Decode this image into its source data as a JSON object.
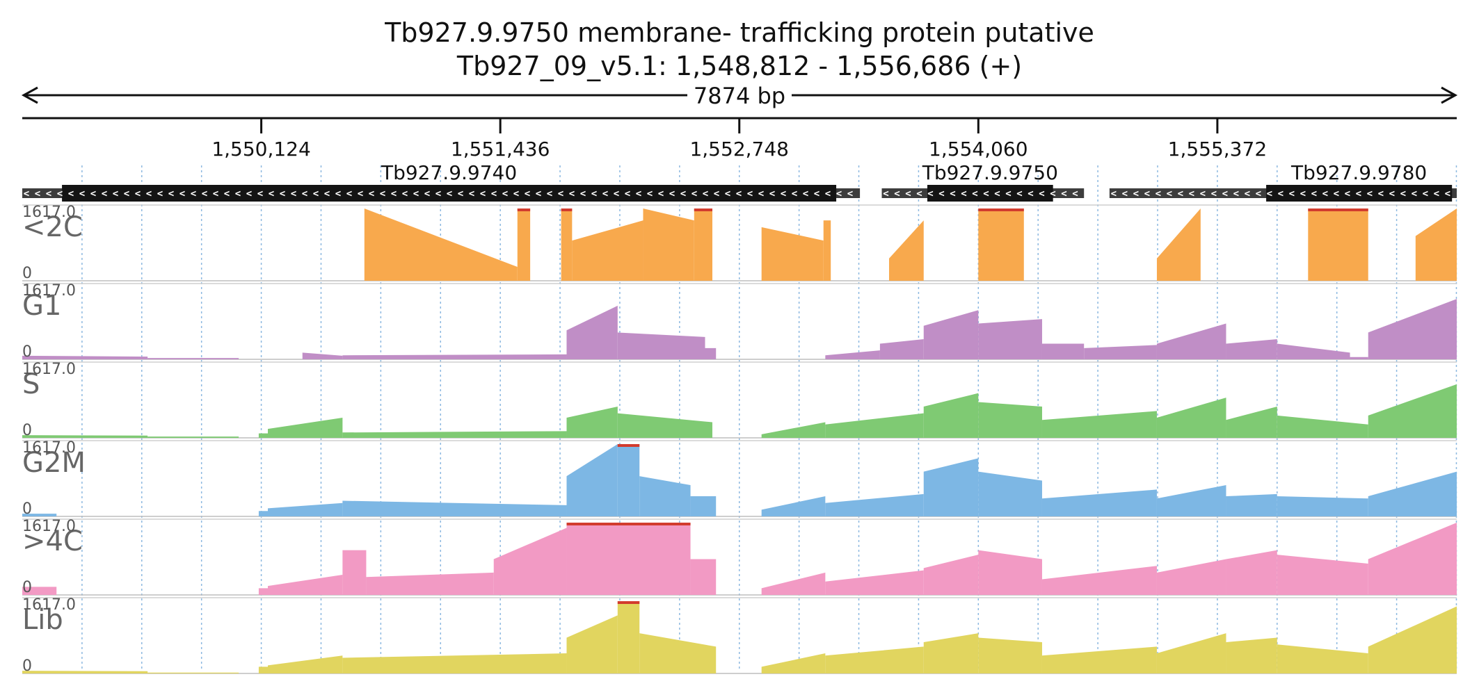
{
  "header": {
    "title": "Tb927.9.9750  membrane- trafficking protein  putative",
    "subtitle": "Tb927_09_v5.1: 1,548,812 - 1,556,686 (+)",
    "span_label": "7874 bp"
  },
  "region": {
    "chrom": "Tb927_09_v5.1",
    "start": 1548812,
    "end": 1556686,
    "strand": "+"
  },
  "chart_data": {
    "type": "area",
    "x_ticks": [
      {
        "pos": 1550124,
        "label": "1,550,124"
      },
      {
        "pos": 1551436,
        "label": "1,551,436"
      },
      {
        "pos": 1552748,
        "label": "1,552,748"
      },
      {
        "pos": 1554060,
        "label": "1,554,060"
      },
      {
        "pos": 1555372,
        "label": "1,555,372"
      }
    ],
    "genes": [
      {
        "name": "Tb927.9.9740",
        "strand": "-",
        "utr_start": 1548812,
        "cds_start": 1549030,
        "cds_end": 1553280,
        "utr_end": 1553410
      },
      {
        "name": "Tb927.9.9750",
        "strand": "-",
        "utr_start": 1553530,
        "cds_start": 1553780,
        "cds_end": 1554470,
        "utr_end": 1554640
      },
      {
        "name": "Tb927.9.9780",
        "strand": "-",
        "utr_start": 1554780,
        "cds_start": 1555640,
        "cds_end": 1556660,
        "utr_end": 1556686
      }
    ],
    "tracks": [
      {
        "name": "<2C",
        "max_label": "1617.0",
        "min_label": "0",
        "ymax": 1617,
        "color": "#f8a94d",
        "segments": [
          [
            1550690,
            1551530,
            1617,
            310
          ],
          [
            1551530,
            1551600,
            1617,
            1617
          ],
          [
            1551770,
            1551830,
            1617,
            1617
          ],
          [
            1551830,
            1552220,
            900,
            1350
          ],
          [
            1552220,
            1552500,
            1617,
            1350
          ],
          [
            1552500,
            1552600,
            1617,
            1617
          ],
          [
            1552870,
            1553210,
            1200,
            900
          ],
          [
            1553210,
            1553250,
            1350,
            1350
          ],
          [
            1553570,
            1553760,
            500,
            1350
          ],
          [
            1554060,
            1554310,
            1617,
            1617
          ],
          [
            1555040,
            1555280,
            500,
            1617
          ],
          [
            1555870,
            1556200,
            1617,
            1617
          ],
          [
            1556460,
            1556686,
            1000,
            1617
          ]
        ]
      },
      {
        "name": "G1",
        "max_label": "1617.0",
        "min_label": "0",
        "ymax": 1617,
        "color": "#c08ec6",
        "segments": [
          [
            1548812,
            1549500,
            80,
            60
          ],
          [
            1549500,
            1550000,
            30,
            30
          ],
          [
            1550350,
            1550570,
            150,
            80
          ],
          [
            1550570,
            1551800,
            90,
            110
          ],
          [
            1551800,
            1552080,
            650,
            1200
          ],
          [
            1552080,
            1552560,
            600,
            500
          ],
          [
            1552560,
            1552620,
            250,
            250
          ],
          [
            1553220,
            1553520,
            90,
            200
          ],
          [
            1553520,
            1553760,
            350,
            450
          ],
          [
            1553760,
            1554060,
            750,
            1100
          ],
          [
            1554060,
            1554410,
            800,
            900
          ],
          [
            1554410,
            1554640,
            350,
            350
          ],
          [
            1554640,
            1555040,
            250,
            320
          ],
          [
            1555040,
            1555420,
            350,
            800
          ],
          [
            1555420,
            1555700,
            350,
            450
          ],
          [
            1555700,
            1556100,
            350,
            150
          ],
          [
            1556100,
            1556200,
            50,
            50
          ],
          [
            1556200,
            1556686,
            600,
            1350
          ]
        ]
      },
      {
        "name": "S",
        "max_label": "1617.0",
        "min_label": "0",
        "ymax": 1617,
        "color": "#7fca73",
        "segments": [
          [
            1548812,
            1549500,
            60,
            50
          ],
          [
            1549500,
            1550000,
            30,
            30
          ],
          [
            1550110,
            1550160,
            100,
            100
          ],
          [
            1550160,
            1550570,
            200,
            450
          ],
          [
            1550570,
            1551800,
            120,
            150
          ],
          [
            1551800,
            1552080,
            450,
            700
          ],
          [
            1552080,
            1552600,
            550,
            350
          ],
          [
            1552870,
            1553220,
            80,
            350
          ],
          [
            1553220,
            1553760,
            300,
            550
          ],
          [
            1553760,
            1554060,
            700,
            1000
          ],
          [
            1554060,
            1554410,
            800,
            700
          ],
          [
            1554410,
            1555040,
            400,
            600
          ],
          [
            1555040,
            1555420,
            450,
            900
          ],
          [
            1555420,
            1555700,
            400,
            700
          ],
          [
            1555700,
            1556200,
            500,
            300
          ],
          [
            1556200,
            1556686,
            500,
            1200
          ]
        ]
      },
      {
        "name": "G2M",
        "max_label": "1617.0",
        "min_label": "0",
        "ymax": 1617,
        "color": "#7db7e4",
        "segments": [
          [
            1548812,
            1549000,
            60,
            60
          ],
          [
            1550110,
            1550160,
            120,
            120
          ],
          [
            1550160,
            1550570,
            180,
            300
          ],
          [
            1550570,
            1551800,
            350,
            250
          ],
          [
            1551800,
            1552080,
            900,
            1617
          ],
          [
            1552080,
            1552200,
            1617,
            1617
          ],
          [
            1552200,
            1552480,
            900,
            700
          ],
          [
            1552480,
            1552620,
            450,
            450
          ],
          [
            1552870,
            1553220,
            150,
            450
          ],
          [
            1553220,
            1553760,
            300,
            500
          ],
          [
            1553760,
            1554060,
            1000,
            1300
          ],
          [
            1554060,
            1554410,
            1000,
            800
          ],
          [
            1554410,
            1555040,
            400,
            600
          ],
          [
            1555040,
            1555420,
            400,
            700
          ],
          [
            1555420,
            1555700,
            450,
            500
          ],
          [
            1555700,
            1556200,
            450,
            400
          ],
          [
            1556200,
            1556686,
            450,
            1000
          ]
        ]
      },
      {
        "name": ">4C",
        "max_label": "1617.0",
        "min_label": "0",
        "ymax": 1617,
        "color": "#f29ac4",
        "segments": [
          [
            1548812,
            1549000,
            180,
            180
          ],
          [
            1550110,
            1550160,
            150,
            150
          ],
          [
            1550160,
            1550570,
            200,
            450
          ],
          [
            1550570,
            1550700,
            1000,
            1000
          ],
          [
            1550700,
            1551400,
            400,
            500
          ],
          [
            1551400,
            1551800,
            800,
            1500
          ],
          [
            1551800,
            1552480,
            1617,
            1617
          ],
          [
            1552480,
            1552620,
            800,
            800
          ],
          [
            1552870,
            1553220,
            150,
            500
          ],
          [
            1553220,
            1553760,
            300,
            550
          ],
          [
            1553760,
            1554060,
            600,
            900
          ],
          [
            1554060,
            1554410,
            1000,
            800
          ],
          [
            1554410,
            1555040,
            350,
            650
          ],
          [
            1555040,
            1555420,
            500,
            800
          ],
          [
            1555420,
            1555700,
            800,
            1000
          ],
          [
            1555700,
            1556200,
            900,
            700
          ],
          [
            1556200,
            1556686,
            800,
            1617
          ]
        ]
      },
      {
        "name": "Lib",
        "max_label": "1617.0",
        "min_label": "0",
        "ymax": 1617,
        "color": "#e1d55f",
        "segments": [
          [
            1548812,
            1549500,
            60,
            50
          ],
          [
            1549500,
            1550000,
            20,
            20
          ],
          [
            1550110,
            1550160,
            150,
            150
          ],
          [
            1550160,
            1550570,
            180,
            400
          ],
          [
            1550570,
            1551800,
            350,
            450
          ],
          [
            1551800,
            1552080,
            800,
            1300
          ],
          [
            1552080,
            1552200,
            1617,
            1617
          ],
          [
            1552200,
            1552620,
            900,
            600
          ],
          [
            1552870,
            1553220,
            150,
            450
          ],
          [
            1553220,
            1553760,
            400,
            600
          ],
          [
            1553760,
            1554060,
            700,
            900
          ],
          [
            1554060,
            1554410,
            800,
            700
          ],
          [
            1554410,
            1555040,
            400,
            600
          ],
          [
            1555040,
            1555420,
            450,
            900
          ],
          [
            1555420,
            1555700,
            700,
            800
          ],
          [
            1555700,
            1556200,
            650,
            450
          ],
          [
            1556200,
            1556686,
            600,
            1500
          ]
        ]
      }
    ]
  }
}
